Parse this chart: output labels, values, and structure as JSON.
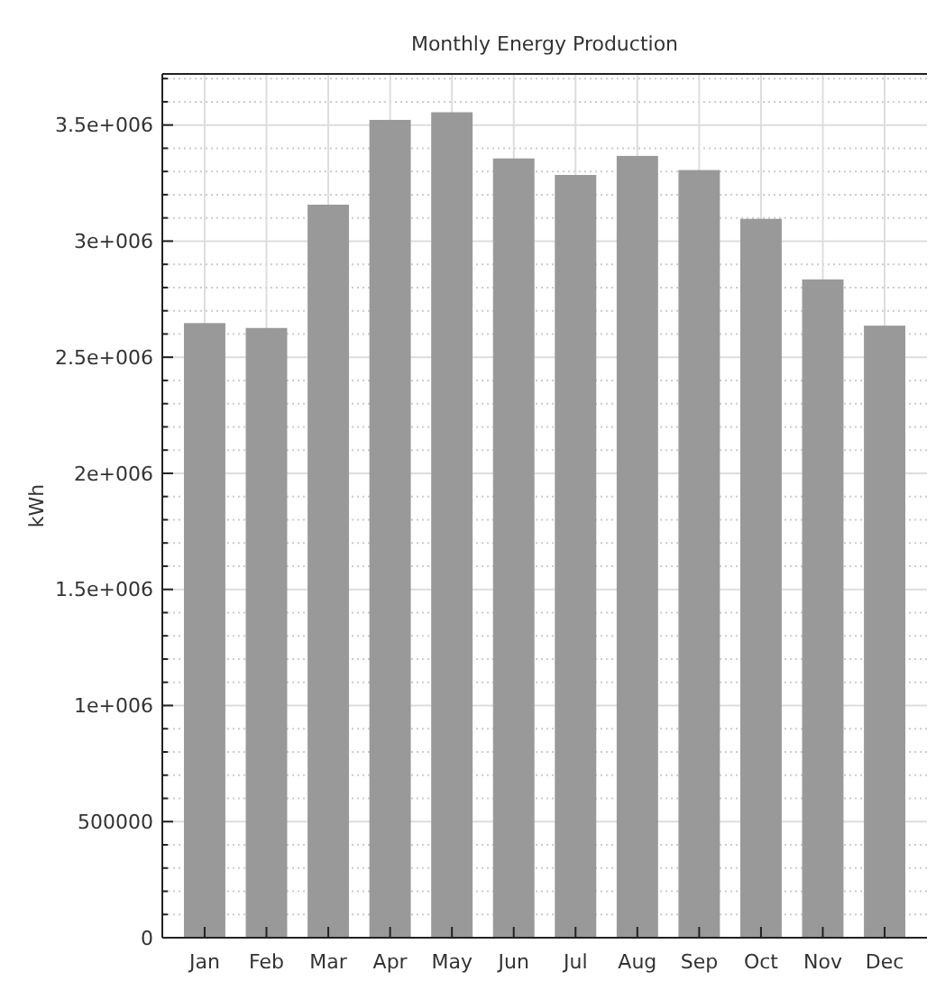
{
  "chart_data": {
    "type": "bar",
    "title": "Monthly Energy Production",
    "ylabel": "kWh",
    "categories": [
      "Jan",
      "Feb",
      "Mar",
      "Apr",
      "May",
      "Jun",
      "Jul",
      "Aug",
      "Sep",
      "Oct",
      "Nov",
      "Dec"
    ],
    "values": [
      2647000,
      2626000,
      3157000,
      3522000,
      3555000,
      3356000,
      3285000,
      3367000,
      3306000,
      3096000,
      2835000,
      2636000
    ],
    "color": "#999999",
    "ylim": [
      0,
      3720000
    ],
    "yticks": [
      0,
      {
        "value": 100000,
        "label": null
      },
      {
        "value": 200000,
        "label": null
      },
      {
        "value": 300000,
        "label": null
      },
      {
        "value": 400000,
        "label": null
      },
      500000,
      {
        "value": 600000,
        "label": null
      },
      {
        "value": 700000,
        "label": null
      },
      {
        "value": 800000,
        "label": null
      },
      {
        "value": 900000,
        "label": null
      },
      {
        "value": 1000000,
        "label": "1e+006"
      },
      {
        "value": 1100000,
        "label": null
      },
      {
        "value": 1200000,
        "label": null
      },
      {
        "value": 1300000,
        "label": null
      },
      {
        "value": 1400000,
        "label": null
      },
      {
        "value": 1500000,
        "label": "1.5e+006"
      },
      {
        "value": 1600000,
        "label": null
      },
      {
        "value": 1700000,
        "label": null
      },
      {
        "value": 1800000,
        "label": null
      },
      {
        "value": 1900000,
        "label": null
      },
      {
        "value": 2000000,
        "label": "2e+006"
      },
      {
        "value": 2100000,
        "label": null
      },
      {
        "value": 2200000,
        "label": null
      },
      {
        "value": 2300000,
        "label": null
      },
      {
        "value": 2400000,
        "label": null
      },
      {
        "value": 2500000,
        "label": "2.5e+006"
      },
      {
        "value": 2600000,
        "label": null
      },
      {
        "value": 2700000,
        "label": null
      },
      {
        "value": 2800000,
        "label": null
      },
      {
        "value": 2900000,
        "label": null
      },
      {
        "value": 3000000,
        "label": "3e+006"
      },
      {
        "value": 3100000,
        "label": null
      },
      {
        "value": 3200000,
        "label": null
      },
      {
        "value": 3300000,
        "label": null
      },
      {
        "value": 3400000,
        "label": null
      },
      {
        "value": 3500000,
        "label": "3.5e+006"
      },
      {
        "value": 3600000,
        "label": null
      },
      {
        "value": 3700000,
        "label": null
      }
    ],
    "grid": true
  }
}
